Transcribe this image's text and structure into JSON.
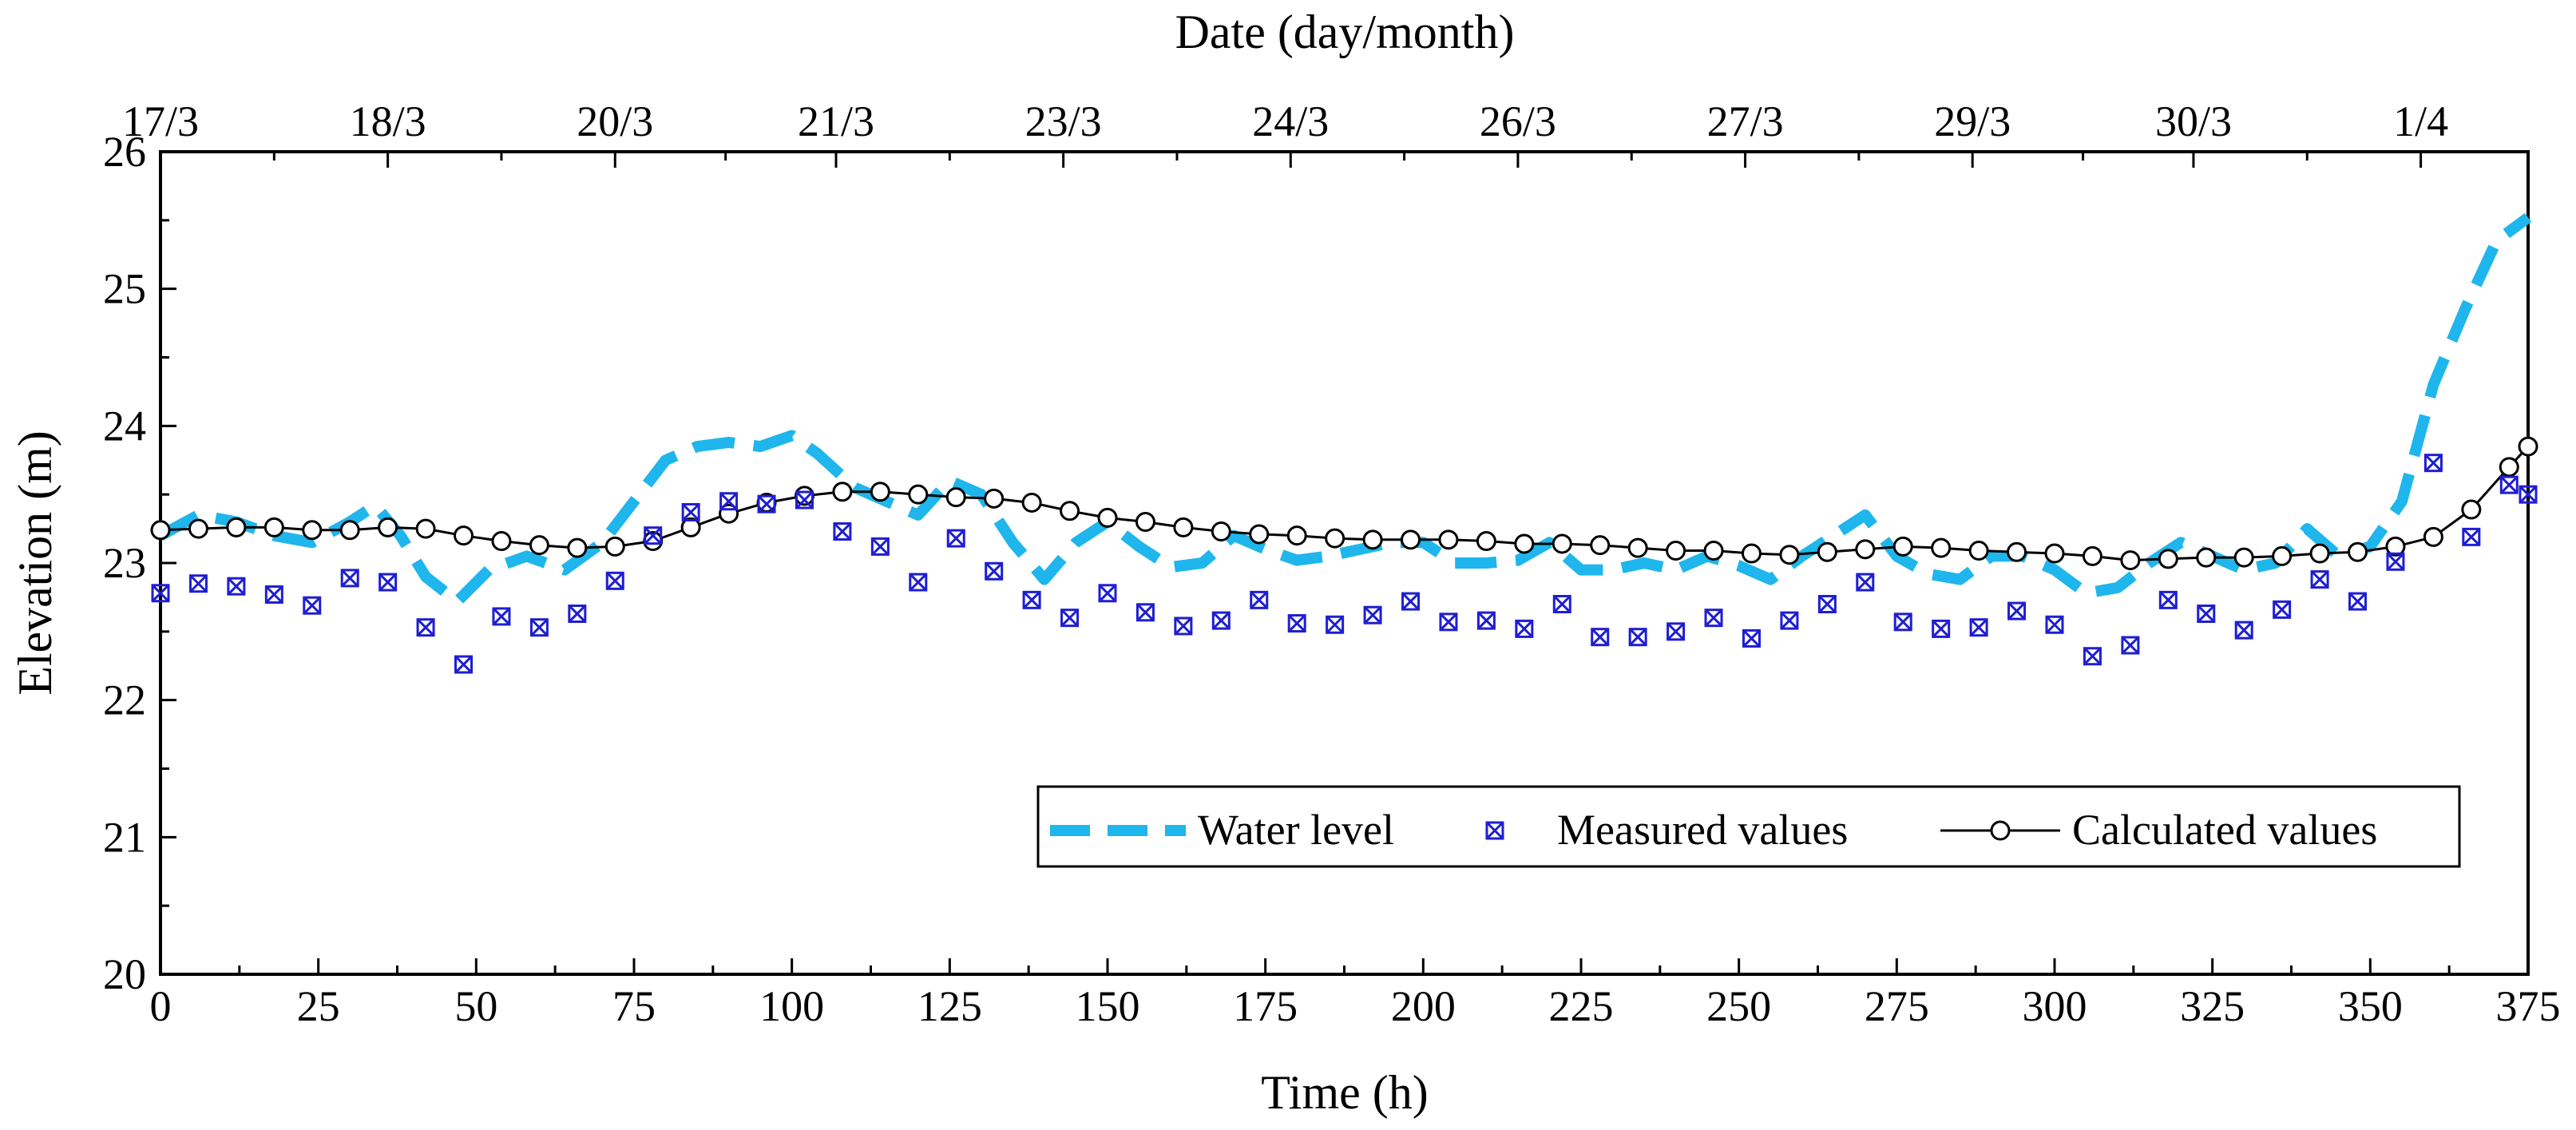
{
  "chart_data": {
    "type": "line",
    "xlabel": "Time (h)",
    "ylabel": "Elevation (m)",
    "top_xlabel": "Date (day/month)",
    "xlim": [
      0,
      375
    ],
    "ylim": [
      20,
      26
    ],
    "x_ticks": [
      0,
      25,
      50,
      75,
      100,
      125,
      150,
      175,
      200,
      225,
      250,
      275,
      300,
      325,
      350,
      375
    ],
    "y_ticks": [
      20,
      21,
      22,
      23,
      24,
      25,
      26
    ],
    "top_ticks": [
      {
        "label": "17/3",
        "x": 0
      },
      {
        "label": "18/3",
        "x": 36
      },
      {
        "label": "20/3",
        "x": 72
      },
      {
        "label": "21/3",
        "x": 107
      },
      {
        "label": "23/3",
        "x": 143
      },
      {
        "label": "24/3",
        "x": 179
      },
      {
        "label": "26/3",
        "x": 215
      },
      {
        "label": "27/3",
        "x": 251
      },
      {
        "label": "29/3",
        "x": 287
      },
      {
        "label": "30/3",
        "x": 322
      },
      {
        "label": "1/4",
        "x": 358
      }
    ],
    "legend_position": "bottom-right",
    "series": [
      {
        "name": "Water level",
        "style": "dashed",
        "color": "#1EB6EC",
        "points": [
          [
            0,
            23.2
          ],
          [
            6,
            23.35
          ],
          [
            12,
            23.3
          ],
          [
            18,
            23.2
          ],
          [
            24,
            23.15
          ],
          [
            30,
            23.3
          ],
          [
            34,
            23.42
          ],
          [
            38,
            23.2
          ],
          [
            42,
            22.9
          ],
          [
            47,
            22.72
          ],
          [
            52,
            22.95
          ],
          [
            58,
            23.05
          ],
          [
            64,
            22.95
          ],
          [
            70,
            23.15
          ],
          [
            75,
            23.45
          ],
          [
            80,
            23.75
          ],
          [
            85,
            23.85
          ],
          [
            90,
            23.88
          ],
          [
            95,
            23.85
          ],
          [
            100,
            23.93
          ],
          [
            104,
            23.8
          ],
          [
            110,
            23.55
          ],
          [
            115,
            23.45
          ],
          [
            120,
            23.35
          ],
          [
            125,
            23.6
          ],
          [
            130,
            23.5
          ],
          [
            135,
            23.15
          ],
          [
            140,
            22.88
          ],
          [
            145,
            23.15
          ],
          [
            150,
            23.3
          ],
          [
            155,
            23.12
          ],
          [
            160,
            22.97
          ],
          [
            165,
            23.0
          ],
          [
            170,
            23.2
          ],
          [
            175,
            23.1
          ],
          [
            180,
            23.02
          ],
          [
            185,
            23.05
          ],
          [
            190,
            23.1
          ],
          [
            195,
            23.15
          ],
          [
            200,
            23.15
          ],
          [
            205,
            23.0
          ],
          [
            210,
            23.0
          ],
          [
            215,
            23.02
          ],
          [
            220,
            23.15
          ],
          [
            225,
            22.95
          ],
          [
            230,
            22.95
          ],
          [
            235,
            23.0
          ],
          [
            240,
            22.95
          ],
          [
            245,
            23.05
          ],
          [
            250,
            22.98
          ],
          [
            255,
            22.88
          ],
          [
            260,
            23.05
          ],
          [
            265,
            23.2
          ],
          [
            270,
            23.35
          ],
          [
            275,
            23.05
          ],
          [
            280,
            22.92
          ],
          [
            285,
            22.88
          ],
          [
            290,
            23.05
          ],
          [
            295,
            23.05
          ],
          [
            300,
            22.95
          ],
          [
            305,
            22.78
          ],
          [
            310,
            22.82
          ],
          [
            315,
            23.0
          ],
          [
            320,
            23.15
          ],
          [
            325,
            23.05
          ],
          [
            330,
            22.95
          ],
          [
            335,
            23.0
          ],
          [
            340,
            23.25
          ],
          [
            345,
            23.05
          ],
          [
            350,
            23.12
          ],
          [
            355,
            23.45
          ],
          [
            360,
            24.3
          ],
          [
            365,
            24.85
          ],
          [
            370,
            25.35
          ],
          [
            375,
            25.52
          ]
        ]
      },
      {
        "name": "Measured values",
        "style": "markers",
        "color": "#1E1ED2",
        "points": [
          [
            0,
            22.78
          ],
          [
            6,
            22.85
          ],
          [
            12,
            22.83
          ],
          [
            18,
            22.77
          ],
          [
            24,
            22.69
          ],
          [
            30,
            22.89
          ],
          [
            36,
            22.86
          ],
          [
            42,
            22.53
          ],
          [
            48,
            22.26
          ],
          [
            54,
            22.61
          ],
          [
            60,
            22.53
          ],
          [
            66,
            22.63
          ],
          [
            72,
            22.87
          ],
          [
            78,
            23.2
          ],
          [
            84,
            23.37
          ],
          [
            90,
            23.45
          ],
          [
            96,
            23.43
          ],
          [
            102,
            23.46
          ],
          [
            108,
            23.23
          ],
          [
            114,
            23.12
          ],
          [
            120,
            22.86
          ],
          [
            126,
            23.18
          ],
          [
            132,
            22.94
          ],
          [
            138,
            22.73
          ],
          [
            144,
            22.6
          ],
          [
            150,
            22.78
          ],
          [
            156,
            22.64
          ],
          [
            162,
            22.54
          ],
          [
            168,
            22.58
          ],
          [
            174,
            22.73
          ],
          [
            180,
            22.56
          ],
          [
            186,
            22.55
          ],
          [
            192,
            22.62
          ],
          [
            198,
            22.72
          ],
          [
            204,
            22.57
          ],
          [
            210,
            22.58
          ],
          [
            216,
            22.52
          ],
          [
            222,
            22.7
          ],
          [
            228,
            22.46
          ],
          [
            234,
            22.46
          ],
          [
            240,
            22.5
          ],
          [
            246,
            22.6
          ],
          [
            252,
            22.45
          ],
          [
            258,
            22.58
          ],
          [
            264,
            22.7
          ],
          [
            270,
            22.86
          ],
          [
            276,
            22.57
          ],
          [
            282,
            22.52
          ],
          [
            288,
            22.53
          ],
          [
            294,
            22.65
          ],
          [
            300,
            22.55
          ],
          [
            306,
            22.32
          ],
          [
            312,
            22.4
          ],
          [
            318,
            22.73
          ],
          [
            324,
            22.63
          ],
          [
            330,
            22.51
          ],
          [
            336,
            22.66
          ],
          [
            342,
            22.88
          ],
          [
            348,
            22.72
          ],
          [
            354,
            23.01
          ],
          [
            360,
            23.73
          ],
          [
            366,
            23.19
          ],
          [
            372,
            23.57
          ],
          [
            375,
            23.5
          ]
        ]
      },
      {
        "name": "Calculated values",
        "style": "line+open-circles",
        "color": "#000000",
        "points": [
          [
            0,
            23.24
          ],
          [
            6,
            23.25
          ],
          [
            12,
            23.26
          ],
          [
            18,
            23.26
          ],
          [
            24,
            23.24
          ],
          [
            30,
            23.24
          ],
          [
            36,
            23.26
          ],
          [
            42,
            23.25
          ],
          [
            48,
            23.2
          ],
          [
            54,
            23.16
          ],
          [
            60,
            23.13
          ],
          [
            66,
            23.11
          ],
          [
            72,
            23.12
          ],
          [
            78,
            23.16
          ],
          [
            84,
            23.26
          ],
          [
            90,
            23.36
          ],
          [
            96,
            23.44
          ],
          [
            102,
            23.49
          ],
          [
            108,
            23.52
          ],
          [
            114,
            23.52
          ],
          [
            120,
            23.5
          ],
          [
            126,
            23.48
          ],
          [
            132,
            23.47
          ],
          [
            138,
            23.44
          ],
          [
            144,
            23.38
          ],
          [
            150,
            23.33
          ],
          [
            156,
            23.3
          ],
          [
            162,
            23.26
          ],
          [
            168,
            23.23
          ],
          [
            174,
            23.21
          ],
          [
            180,
            23.2
          ],
          [
            186,
            23.18
          ],
          [
            192,
            23.17
          ],
          [
            198,
            23.17
          ],
          [
            204,
            23.17
          ],
          [
            210,
            23.16
          ],
          [
            216,
            23.14
          ],
          [
            222,
            23.14
          ],
          [
            228,
            23.13
          ],
          [
            234,
            23.11
          ],
          [
            240,
            23.09
          ],
          [
            246,
            23.09
          ],
          [
            252,
            23.07
          ],
          [
            258,
            23.06
          ],
          [
            264,
            23.08
          ],
          [
            270,
            23.1
          ],
          [
            276,
            23.12
          ],
          [
            282,
            23.11
          ],
          [
            288,
            23.09
          ],
          [
            294,
            23.08
          ],
          [
            300,
            23.07
          ],
          [
            306,
            23.05
          ],
          [
            312,
            23.02
          ],
          [
            318,
            23.03
          ],
          [
            324,
            23.04
          ],
          [
            330,
            23.04
          ],
          [
            336,
            23.05
          ],
          [
            342,
            23.07
          ],
          [
            348,
            23.08
          ],
          [
            354,
            23.12
          ],
          [
            360,
            23.19
          ],
          [
            366,
            23.39
          ],
          [
            372,
            23.7
          ],
          [
            375,
            23.85
          ]
        ]
      }
    ]
  }
}
